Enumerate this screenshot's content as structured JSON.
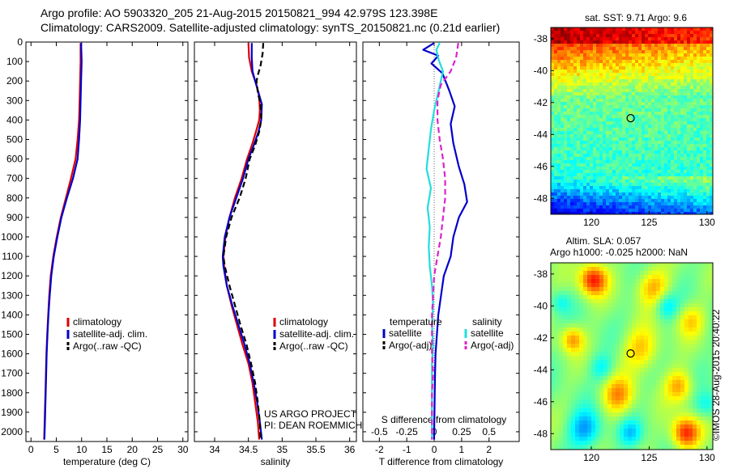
{
  "header": {
    "line1": "Argo profile: AO 5903320_205 21-Aug-2015 20150821_994 42.979S 123.398E",
    "line2": "Climatology: CARS2009. Satellite-adjusted climatology: synTS_20150821.nc (0.21d earlier)"
  },
  "colors": {
    "climatology": "#dd0000",
    "satellite": "#0000cc",
    "argo": "#000000",
    "t_sat": "#0000cc",
    "s_sat": "#22dddd",
    "s_argo": "#dd22cc"
  },
  "chart_data": [
    {
      "type": "line",
      "id": "temperature",
      "xlabel": "temperature (deg C)",
      "xlim": [
        -1,
        31
      ],
      "ylim": [
        2050,
        0
      ],
      "xticks": [
        0,
        5,
        10,
        15,
        20,
        25,
        30
      ],
      "xtick_labels": [
        "0",
        "5",
        "10",
        "15",
        "20",
        "25",
        "30"
      ],
      "yticks": [
        0,
        100,
        200,
        300,
        400,
        500,
        600,
        700,
        800,
        900,
        1000,
        1100,
        1200,
        1300,
        1400,
        1500,
        1600,
        1700,
        1800,
        1900,
        2000
      ],
      "ytick_labels": [
        "0",
        "100",
        "200",
        "300",
        "400",
        "500",
        "600",
        "700",
        "800",
        "900",
        "1000",
        "1100",
        "1200",
        "1300",
        "1400",
        "1500",
        "1600",
        "1700",
        "1800",
        "1900",
        "2000"
      ],
      "legend": [
        "climatology",
        "satellite-adj. clim.",
        "Argo(..raw -QC)"
      ],
      "series": [
        {
          "name": "climatology",
          "color_key": "climatology",
          "dash": false,
          "points": [
            [
              9.8,
              5
            ],
            [
              9.8,
              100
            ],
            [
              9.7,
              200
            ],
            [
              9.6,
              300
            ],
            [
              9.5,
              400
            ],
            [
              9.2,
              500
            ],
            [
              8.8,
              600
            ],
            [
              7.9,
              700
            ],
            [
              6.9,
              800
            ],
            [
              5.9,
              900
            ],
            [
              5.1,
              1000
            ],
            [
              4.4,
              1100
            ],
            [
              3.9,
              1200
            ],
            [
              3.6,
              1300
            ],
            [
              3.4,
              1400
            ],
            [
              3.2,
              1500
            ],
            [
              3.05,
              1600
            ],
            [
              2.95,
              1700
            ],
            [
              2.85,
              1800
            ],
            [
              2.75,
              1900
            ],
            [
              2.65,
              2000
            ],
            [
              2.6,
              2040
            ]
          ]
        },
        {
          "name": "satellite-adj. clim.",
          "color_key": "satellite",
          "dash": false,
          "points": [
            [
              9.9,
              5
            ],
            [
              10.0,
              100
            ],
            [
              9.9,
              200
            ],
            [
              9.8,
              300
            ],
            [
              9.7,
              400
            ],
            [
              9.5,
              500
            ],
            [
              9.2,
              600
            ],
            [
              8.3,
              700
            ],
            [
              7.1,
              800
            ],
            [
              6.0,
              900
            ],
            [
              5.2,
              1000
            ],
            [
              4.5,
              1100
            ],
            [
              4.0,
              1200
            ],
            [
              3.7,
              1300
            ],
            [
              3.45,
              1400
            ],
            [
              3.25,
              1500
            ],
            [
              3.1,
              1600
            ],
            [
              3.0,
              1700
            ],
            [
              2.9,
              1800
            ],
            [
              2.8,
              1900
            ],
            [
              2.7,
              2000
            ],
            [
              2.65,
              2040
            ]
          ]
        },
        {
          "name": "Argo(..raw -QC)",
          "color_key": "argo",
          "dash": true,
          "points": []
        }
      ]
    },
    {
      "type": "line",
      "id": "salinity",
      "xlabel": "salinity",
      "xlim": [
        33.7,
        36.1
      ],
      "ylim": [
        2050,
        0
      ],
      "xticks": [
        34,
        34.5,
        35,
        35.5,
        36
      ],
      "xtick_labels": [
        "34",
        "34.5",
        "35",
        "35.5",
        "36"
      ],
      "legend": [
        "climatology",
        "satellite-adj. clim.",
        "Argo(..raw -QC)"
      ],
      "annotation": [
        "US ARGO PROJECT",
        "PI: DEAN ROEMMICH"
      ],
      "series": [
        {
          "name": "climatology",
          "color_key": "climatology",
          "dash": false,
          "points": [
            [
              34.5,
              5
            ],
            [
              34.51,
              80
            ],
            [
              34.55,
              150
            ],
            [
              34.62,
              220
            ],
            [
              34.66,
              280
            ],
            [
              34.67,
              350
            ],
            [
              34.66,
              400
            ],
            [
              34.62,
              450
            ],
            [
              34.56,
              520
            ],
            [
              34.48,
              600
            ],
            [
              34.4,
              700
            ],
            [
              34.3,
              800
            ],
            [
              34.22,
              900
            ],
            [
              34.16,
              1000
            ],
            [
              34.13,
              1100
            ],
            [
              34.14,
              1150
            ],
            [
              34.18,
              1250
            ],
            [
              34.25,
              1350
            ],
            [
              34.33,
              1450
            ],
            [
              34.41,
              1550
            ],
            [
              34.5,
              1650
            ],
            [
              34.56,
              1750
            ],
            [
              34.6,
              1850
            ],
            [
              34.64,
              1950
            ],
            [
              34.66,
              2040
            ]
          ]
        },
        {
          "name": "satellite-adj. clim.",
          "color_key": "satellite",
          "dash": false,
          "points": [
            [
              34.55,
              5
            ],
            [
              34.55,
              80
            ],
            [
              34.56,
              150
            ],
            [
              34.6,
              200
            ],
            [
              34.65,
              260
            ],
            [
              34.7,
              320
            ],
            [
              34.69,
              400
            ],
            [
              34.65,
              460
            ],
            [
              34.58,
              530
            ],
            [
              34.5,
              600
            ],
            [
              34.42,
              700
            ],
            [
              34.32,
              800
            ],
            [
              34.22,
              900
            ],
            [
              34.15,
              1000
            ],
            [
              34.12,
              1100
            ],
            [
              34.13,
              1150
            ],
            [
              34.18,
              1250
            ],
            [
              34.26,
              1350
            ],
            [
              34.35,
              1450
            ],
            [
              34.44,
              1550
            ],
            [
              34.52,
              1650
            ],
            [
              34.58,
              1750
            ],
            [
              34.63,
              1850
            ],
            [
              34.67,
              1950
            ],
            [
              34.7,
              2040
            ]
          ]
        },
        {
          "name": "Argo(..raw -QC)",
          "color_key": "argo",
          "dash": true,
          "points": [
            [
              34.72,
              5
            ],
            [
              34.71,
              60
            ],
            [
              34.68,
              120
            ],
            [
              34.64,
              170
            ],
            [
              34.62,
              200
            ],
            [
              34.64,
              260
            ],
            [
              34.68,
              320
            ],
            [
              34.69,
              400
            ],
            [
              34.66,
              460
            ],
            [
              34.6,
              530
            ],
            [
              34.52,
              600
            ],
            [
              34.46,
              700
            ],
            [
              34.37,
              800
            ],
            [
              34.25,
              900
            ],
            [
              34.17,
              1000
            ],
            [
              34.13,
              1100
            ],
            [
              34.15,
              1150
            ],
            [
              34.22,
              1250
            ],
            [
              34.3,
              1350
            ],
            [
              34.38,
              1450
            ],
            [
              34.47,
              1550
            ],
            [
              34.54,
              1650
            ],
            [
              34.6,
              1750
            ],
            [
              34.64,
              1850
            ],
            [
              34.67,
              1950
            ],
            [
              34.68,
              2040
            ]
          ]
        }
      ]
    },
    {
      "type": "line",
      "id": "difference",
      "xlabel": "T difference from climatology",
      "top_label": "S difference from climatology",
      "xlim": [
        -2.6,
        3.1
      ],
      "ylim": [
        2050,
        0
      ],
      "xticks": [
        -2,
        -1,
        0,
        1,
        2
      ],
      "xtick_labels": [
        "-2",
        "-1",
        "0",
        "1",
        "2"
      ],
      "s_ticks": [
        -0.5,
        -0.25,
        0,
        0.25,
        0.5
      ],
      "s_tick_labels": [
        "-0.5",
        "-0.25",
        "0",
        "0.25",
        "0.5"
      ],
      "s_to_t_factor": 4,
      "legend_titles": [
        "temperature",
        "salinity"
      ],
      "legend": [
        "satellite",
        "Argo(-adj)",
        "satellite",
        "Argo(-adj)"
      ],
      "series": [
        {
          "name": "T satellite",
          "color_key": "t_sat",
          "dash": false,
          "points": [
            [
              0,
              5
            ],
            [
              -0.4,
              40
            ],
            [
              0.15,
              70
            ],
            [
              -0.1,
              110
            ],
            [
              0.3,
              160
            ],
            [
              0.55,
              250
            ],
            [
              0.75,
              330
            ],
            [
              0.6,
              420
            ],
            [
              0.7,
              520
            ],
            [
              0.9,
              640
            ],
            [
              1.1,
              730
            ],
            [
              1.2,
              820
            ],
            [
              0.9,
              900
            ],
            [
              0.7,
              1000
            ],
            [
              0.6,
              1100
            ],
            [
              0.35,
              1200
            ],
            [
              0.25,
              1300
            ],
            [
              0.15,
              1400
            ],
            [
              0.1,
              1500
            ],
            [
              0.05,
              1600
            ],
            [
              0.03,
              1700
            ],
            [
              0.02,
              1800
            ],
            [
              0.01,
              1900
            ],
            [
              0.0,
              2000
            ],
            [
              0.0,
              2040
            ]
          ]
        },
        {
          "name": "T Argo(-adj)",
          "color_key": "argo",
          "dash": true,
          "points": []
        },
        {
          "name": "S satellite",
          "color_key": "s_sat",
          "dash": false,
          "points": [
            [
              0.05,
              5
            ],
            [
              0.02,
              40
            ],
            [
              0.04,
              90
            ],
            [
              0.08,
              150
            ],
            [
              0.04,
              250
            ],
            [
              0.0,
              350
            ],
            [
              -0.03,
              450
            ],
            [
              -0.05,
              550
            ],
            [
              -0.07,
              650
            ],
            [
              -0.03,
              750
            ],
            [
              -0.06,
              850
            ],
            [
              -0.04,
              950
            ],
            [
              -0.05,
              1050
            ],
            [
              -0.04,
              1150
            ],
            [
              -0.02,
              1250
            ],
            [
              -0.01,
              1350
            ],
            [
              -0.02,
              1450
            ],
            [
              -0.01,
              1550
            ],
            [
              -0.02,
              1650
            ],
            [
              -0.02,
              1750
            ],
            [
              -0.02,
              1850
            ],
            [
              -0.02,
              1950
            ],
            [
              -0.02,
              2040
            ]
          ]
        },
        {
          "name": "S Argo(-adj)",
          "color_key": "s_argo",
          "dash": true,
          "points": [
            [
              0.22,
              5
            ],
            [
              0.2,
              80
            ],
            [
              0.15,
              150
            ],
            [
              0.06,
              220
            ],
            [
              0.03,
              300
            ],
            [
              0.03,
              400
            ],
            [
              0.05,
              500
            ],
            [
              0.08,
              600
            ],
            [
              0.1,
              700
            ],
            [
              0.1,
              800
            ],
            [
              0.08,
              900
            ],
            [
              0.06,
              1000
            ],
            [
              0.03,
              1100
            ],
            [
              0.0,
              1200
            ],
            [
              -0.01,
              1300
            ],
            [
              -0.02,
              1400
            ],
            [
              -0.02,
              1500
            ],
            [
              -0.02,
              1600
            ],
            [
              -0.01,
              1700
            ],
            [
              -0.02,
              1800
            ],
            [
              -0.02,
              1900
            ],
            [
              -0.02,
              2000
            ],
            [
              -0.02,
              2040
            ]
          ]
        }
      ]
    },
    {
      "type": "heatmap",
      "id": "sst_map",
      "title": "sat. SST: 9.71 Argo: 9.6",
      "xlim": [
        116.5,
        130.5
      ],
      "ylim": [
        -49,
        -37.3
      ],
      "xticks": [
        120,
        125,
        130
      ],
      "xtick_labels": [
        "120",
        "125",
        "130"
      ],
      "yticks": [
        -38,
        -40,
        -42,
        -44,
        -46,
        -48
      ],
      "ytick_labels": [
        "-38",
        "-40",
        "-42",
        "-44",
        "-46",
        "-48"
      ],
      "marker": [
        123.4,
        -42.98
      ]
    },
    {
      "type": "heatmap",
      "id": "sla_map",
      "title": "Altim. SLA: 0.057",
      "subtitle": "Argo h1000: -0.025 h2000: NaN",
      "xlim": [
        116.5,
        130.5
      ],
      "ylim": [
        -49,
        -37.3
      ],
      "xticks": [
        120,
        125,
        130
      ],
      "xtick_labels": [
        "120",
        "125",
        "130"
      ],
      "yticks": [
        -38,
        -40,
        -42,
        -44,
        -46,
        -48
      ],
      "ytick_labels": [
        "-38",
        "-40",
        "-42",
        "-44",
        "-46",
        "-48"
      ],
      "marker": [
        123.4,
        -42.98
      ]
    }
  ],
  "stamp": "©IMOS 28-Aug-2015 20:40:22"
}
